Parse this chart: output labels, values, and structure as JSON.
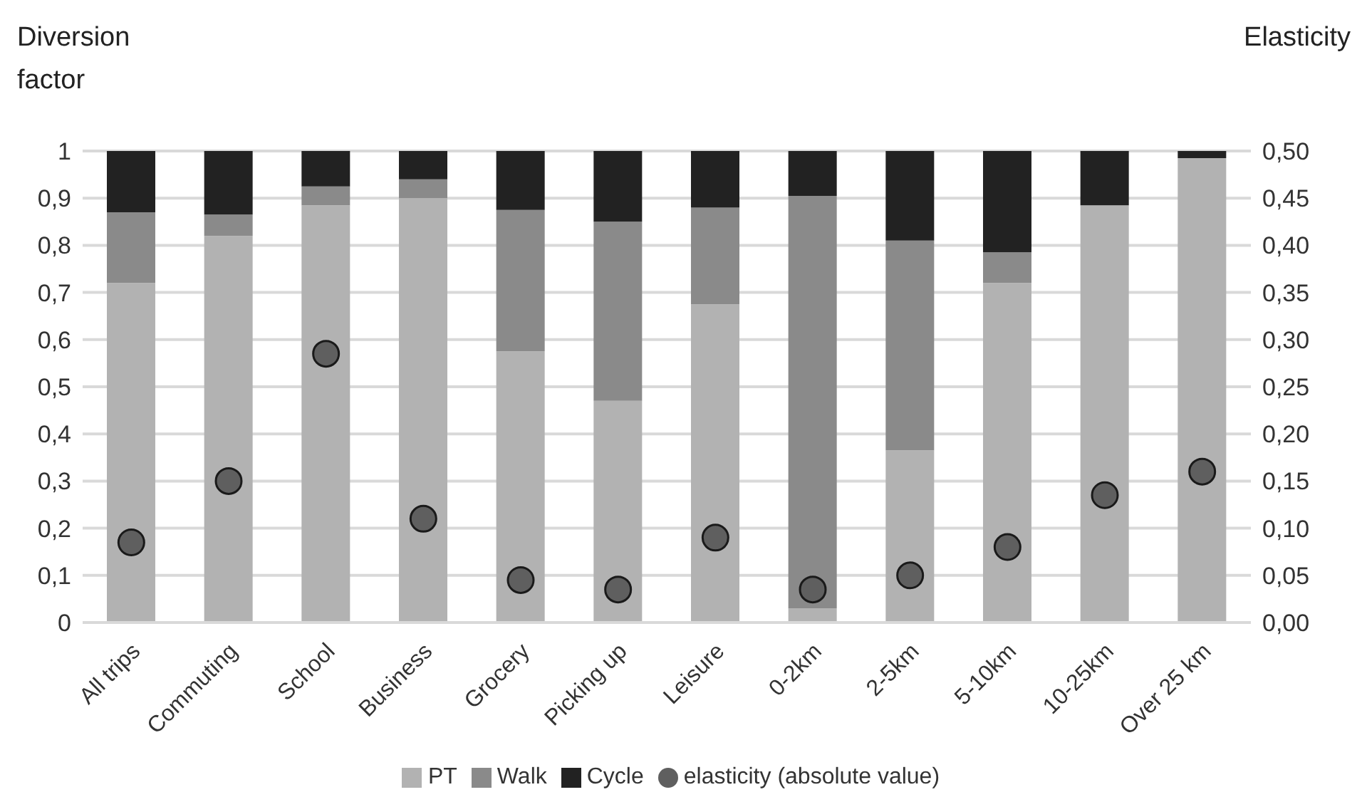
{
  "chart_data": {
    "type": "bar",
    "stacked": true,
    "ylabel": "Diversion factor",
    "y2label": "Elasticity",
    "categories": [
      "All trips",
      "Commuting",
      "School",
      "Business",
      "Grocery",
      "Picking up",
      "Leisure",
      "0-2km",
      "2-5km",
      "5-10km",
      "10-25km",
      "Over 25 km"
    ],
    "series": [
      {
        "name": "PT",
        "color": "#b2b2b2",
        "values": [
          0.72,
          0.82,
          0.885,
          0.9,
          0.575,
          0.47,
          0.675,
          0.03,
          0.365,
          0.72,
          0.885,
          0.985
        ]
      },
      {
        "name": "Walk",
        "color": "#8a8a8a",
        "values": [
          0.15,
          0.045,
          0.04,
          0.04,
          0.3,
          0.38,
          0.205,
          0.875,
          0.445,
          0.065,
          0,
          0
        ]
      },
      {
        "name": "Cycle",
        "color": "#222222",
        "values": [
          0.13,
          0.135,
          0.075,
          0.06,
          0.125,
          0.15,
          0.12,
          0.095,
          0.19,
          0.215,
          0.115,
          0.015
        ]
      },
      {
        "name": "elasticity (absolute value)",
        "type": "scatter",
        "axis": "y2",
        "marker": "circle",
        "color": "#5f5f5f",
        "x": [
          "All trips",
          "Commuting",
          "School",
          "Business",
          "Grocery",
          "Picking up",
          "Leisure",
          "0-2km",
          "2-5km",
          "5-10km",
          "10-25km",
          "Over 25 km"
        ],
        "values": [
          0.085,
          0.15,
          0.285,
          0.11,
          0.045,
          0.035,
          0.09,
          0.035,
          0.05,
          0.08,
          0.135,
          0.16
        ]
      }
    ],
    "ylim": [
      0,
      1
    ],
    "yticks": [
      {
        "value": 0,
        "label": "0"
      },
      {
        "value": 0.1,
        "label": "0,1"
      },
      {
        "value": 0.2,
        "label": "0,2"
      },
      {
        "value": 0.3,
        "label": "0,3"
      },
      {
        "value": 0.4,
        "label": "0,4"
      },
      {
        "value": 0.5,
        "label": "0,5"
      },
      {
        "value": 0.6,
        "label": "0,6"
      },
      {
        "value": 0.7,
        "label": "0,7"
      },
      {
        "value": 0.8,
        "label": "0,8"
      },
      {
        "value": 0.9,
        "label": "0,9"
      },
      {
        "value": 1,
        "label": "1"
      }
    ],
    "y2lim": [
      0,
      0.5
    ],
    "y2ticks": [
      {
        "value": 0,
        "label": "0,00"
      },
      {
        "value": 0.05,
        "label": "0,05"
      },
      {
        "value": 0.1,
        "label": "0,10"
      },
      {
        "value": 0.15,
        "label": "0,15"
      },
      {
        "value": 0.2,
        "label": "0,20"
      },
      {
        "value": 0.25,
        "label": "0,25"
      },
      {
        "value": 0.3,
        "label": "0,30"
      },
      {
        "value": 0.35,
        "label": "0,35"
      },
      {
        "value": 0.4,
        "label": "0,40"
      },
      {
        "value": 0.45,
        "label": "0,45"
      },
      {
        "value": 0.5,
        "label": "0,50"
      }
    ],
    "grid": "y",
    "legend": "bottom"
  }
}
